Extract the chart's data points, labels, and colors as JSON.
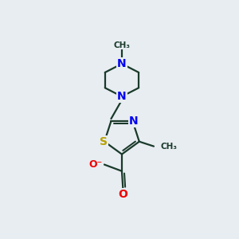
{
  "bg_color": "#e8edf2",
  "bond_color": "#1a3a2a",
  "S_color": "#b8a000",
  "N_color": "#0000ee",
  "O_color": "#ee0000",
  "C_color": "#1a3a2a",
  "bond_width": 1.6,
  "figsize": [
    3.0,
    3.0
  ],
  "dpi": 100,
  "xlim": [
    0,
    10
  ],
  "ylim": [
    0,
    10
  ]
}
